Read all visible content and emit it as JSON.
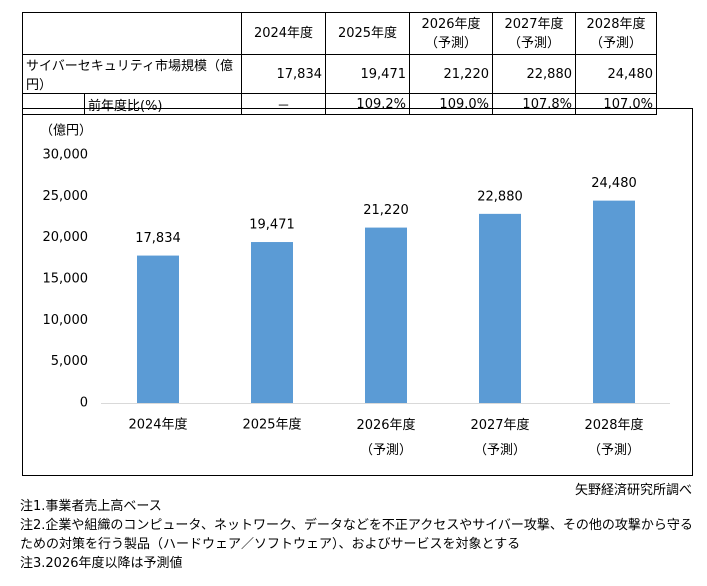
{
  "table": {
    "header": [
      "2024年度",
      "2025年度",
      "2026年度\n（予測）",
      "2027年度\n（予測）",
      "2028年度\n（予測）"
    ],
    "rows": [
      [
        "サイバーセキュリティ市場規模（億円）",
        "17,834",
        "19,471",
        "21,220",
        "22,880",
        "24,480"
      ],
      [
        "前年度比(%)",
        "－",
        "109.2%",
        "109.0%",
        "107.8%",
        "107.0%"
      ]
    ]
  },
  "chart_data": {
    "type": "bar",
    "ylabel": "（億円）",
    "categories": [
      "2024年度",
      "2025年度",
      "2026年度\n（予測）",
      "2027年度\n（予測）",
      "2028年度\n（予測）"
    ],
    "values": [
      17834,
      19471,
      21220,
      22880,
      24480
    ],
    "value_labels": [
      "17,834",
      "19,471",
      "21,220",
      "22,880",
      "24,480"
    ],
    "color": "#5b9bd5",
    "grid": false,
    "ylim": [
      0,
      30000
    ],
    "yticks": [
      0,
      {
        "value": 5000,
        "label": "5,000"
      },
      {
        "value": 10000,
        "label": "10,000"
      },
      {
        "value": 15000,
        "label": "15,000"
      },
      {
        "value": 20000,
        "label": "20,000"
      },
      {
        "value": 25000,
        "label": "25,000"
      },
      {
        "value": 30000,
        "label": "30,000"
      }
    ]
  },
  "source": "矢野経済研究所調べ",
  "notes": [
    "注1.事業者売上高ベース",
    "注2.企業や組織のコンピュータ、ネットワーク、データなどを不正アクセスやサイバー攻撃、その他の攻撃から守るための対策を行う製品（ハードウェア／ソフトウェア）、およびサービスを対象とする",
    "注3.2026年度以降は予測値"
  ]
}
